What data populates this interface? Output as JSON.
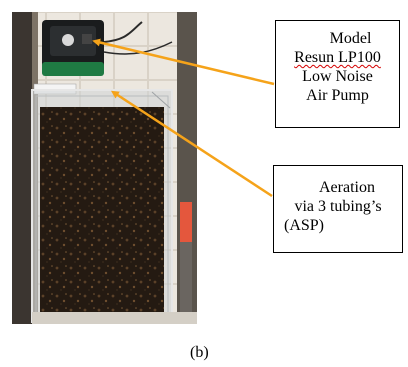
{
  "figure": {
    "pump_callout": {
      "line_1": "Model",
      "line_2": "Resun LP100",
      "line_3": "Low Noise",
      "line_4": "Air Pump"
    },
    "aeration_callout": {
      "line_1": "Aeration",
      "line_2": "via 3 tubing’s",
      "line_3": "(ASP)"
    },
    "caption": "(b)"
  },
  "colors": {
    "arrow": "#f5a31a",
    "spellcheck_underline": "#d40000",
    "box_border": "#000000"
  }
}
